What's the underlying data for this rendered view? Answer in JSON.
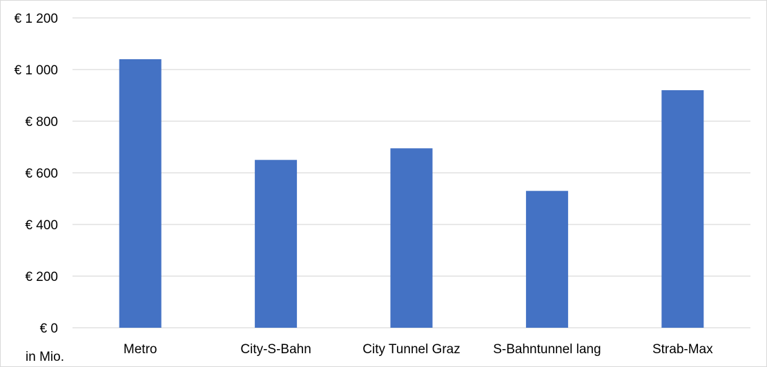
{
  "chart_data": {
    "type": "bar",
    "categories": [
      "Metro",
      "City-S-Bahn",
      "City Tunnel Graz",
      "S-Bahntunnel lang",
      "Strab-Max"
    ],
    "values": [
      1040,
      650,
      695,
      530,
      920
    ],
    "ylim": [
      0,
      1200
    ],
    "yticks": [
      0,
      200,
      400,
      600,
      800,
      1000,
      1200
    ],
    "ytick_labels": [
      "€ 0",
      "€ 200",
      "€ 400",
      "€ 600",
      "€ 800",
      "€ 1 000",
      "€ 1 200"
    ],
    "unit_label": "in Mio.",
    "grid": true,
    "legend": "none",
    "bar_color": "#4472c4",
    "grid_color": "#d9d9d9"
  }
}
